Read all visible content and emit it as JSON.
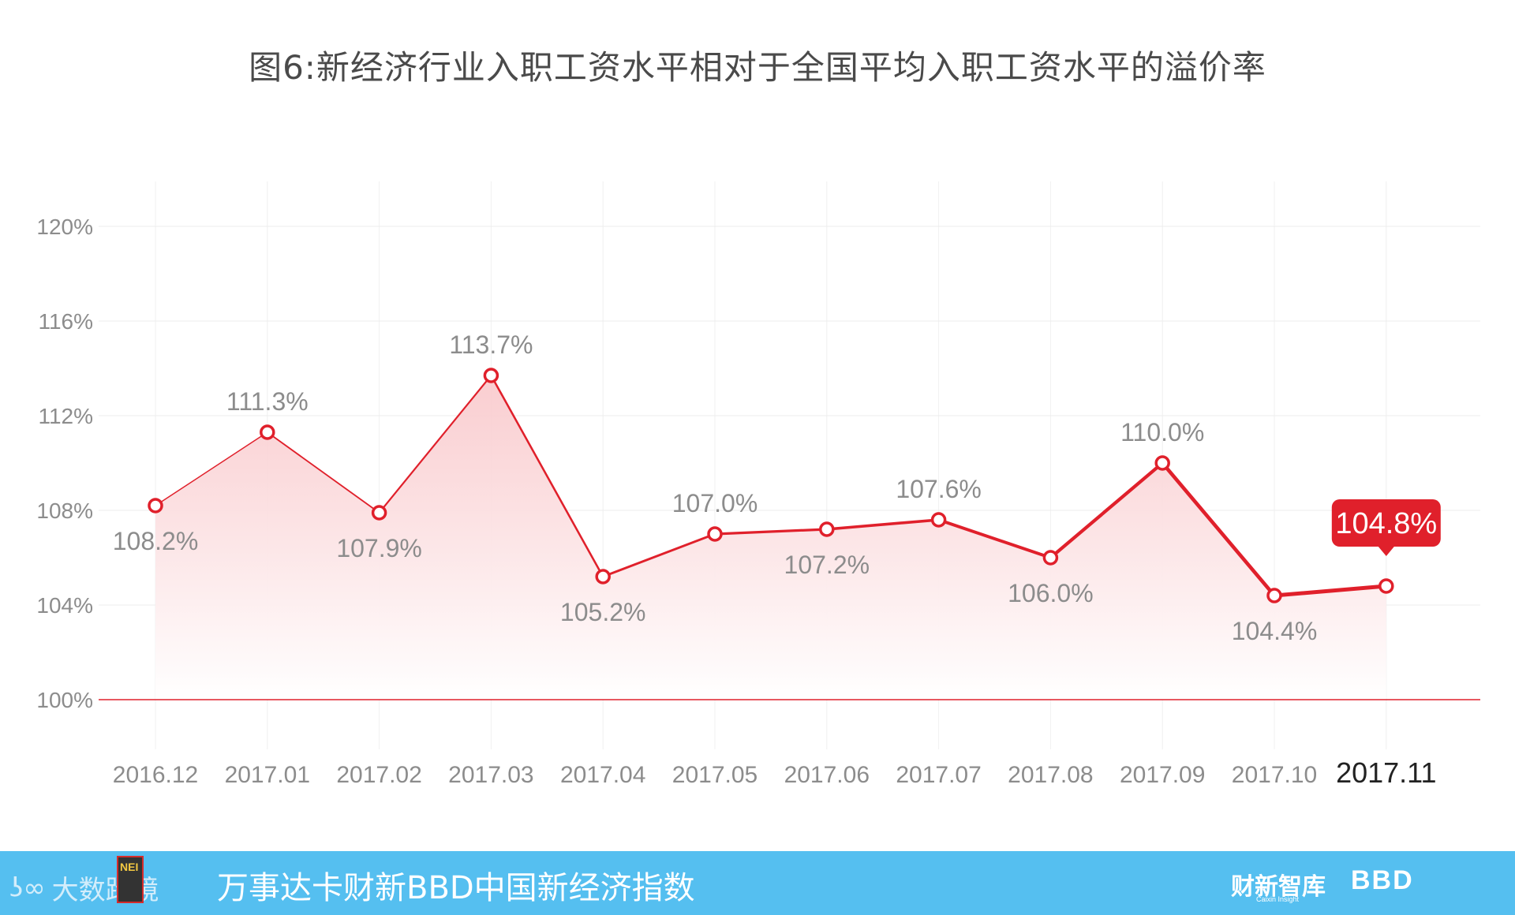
{
  "title": "图6:新经济行业入职工资水平相对于全国平均入职工资水平的溢价率",
  "chart_data": {
    "type": "line",
    "categories": [
      "2016.12",
      "2017.01",
      "2017.02",
      "2017.03",
      "2017.04",
      "2017.05",
      "2017.06",
      "2017.07",
      "2017.08",
      "2017.09",
      "2017.10",
      "2017.11"
    ],
    "values": [
      108.2,
      111.3,
      107.9,
      113.7,
      105.2,
      107.0,
      107.2,
      107.6,
      106.0,
      110.0,
      104.4,
      104.8
    ],
    "value_labels": [
      "108.2%",
      "111.3%",
      "107.9%",
      "113.7%",
      "105.2%",
      "107.0%",
      "107.2%",
      "107.6%",
      "106.0%",
      "110.0%",
      "104.4%",
      "104.8%"
    ],
    "label_position": [
      "below",
      "above",
      "below",
      "above",
      "below",
      "above",
      "below",
      "above",
      "below",
      "above",
      "below",
      "callout"
    ],
    "y_ticks": [
      100,
      104,
      108,
      112,
      116,
      120
    ],
    "y_tick_labels": [
      "100%",
      "104%",
      "108%",
      "112%",
      "116%",
      "120%"
    ],
    "ylim": [
      100,
      120
    ],
    "grid": true,
    "colors": {
      "line": "#e0202b",
      "area_top": "#f9c8cb",
      "area_bottom": "#ffffff",
      "label": "#8c8c8c",
      "axis_label": "#8c8c8c",
      "highlight_label": "#222222",
      "callout_bg": "#e0202b",
      "callout_text": "#ffffff"
    }
  },
  "footer": {
    "brand_left": "大数跨境",
    "logo_text": "NEI",
    "index_name": "万事达卡财新BBD中国新经济指数",
    "brand_right_1": "财新智库",
    "brand_right_1_sub": "Caixin Insight",
    "brand_right_2": "BBD",
    "background": "#55bff0"
  }
}
